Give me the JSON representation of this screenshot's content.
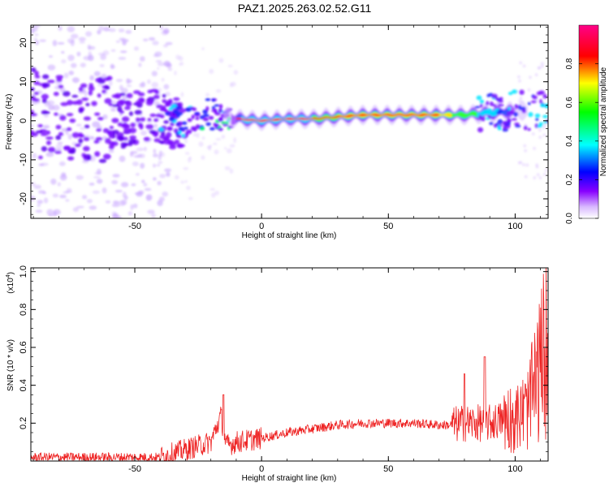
{
  "title": "PAZ1.2025.263.02.52.G11",
  "chart_data": [
    {
      "type": "heatmap",
      "xlabel": "Height of straight line (km)",
      "ylabel": "Frequency (Hz)",
      "xlim": [
        -91,
        113
      ],
      "ylim": [
        -25,
        24.5
      ],
      "xticks": [
        "-50",
        "0",
        "50",
        "100"
      ],
      "yticks": [
        "20",
        "10",
        "0",
        "-10",
        "-20"
      ],
      "colorbar": {
        "label": "Normalized spectral amplitude",
        "range": [
          0,
          1
        ],
        "ticks": [
          "0.0",
          "0.2",
          "0.4",
          "0.6",
          "0.8"
        ],
        "colors": [
          "#ffffff",
          "#8800ff",
          "#0000ff",
          "#00ffff",
          "#00ff00",
          "#ffff00",
          "#ff0000",
          "#ff0088"
        ]
      },
      "ridge": {
        "description_points_km": [
          -90,
          -60,
          -40,
          -30,
          -20,
          -10,
          0,
          10,
          20,
          40,
          60,
          80,
          100,
          110
        ],
        "frequency_hz": [
          1.5,
          0,
          1,
          -1,
          2,
          0.5,
          0,
          0.5,
          0.5,
          1.5,
          1.5,
          1.5,
          2.5,
          3
        ]
      }
    },
    {
      "type": "line",
      "xlabel": "Height of straight line (km)",
      "ylabel": "SNR (10 * v/v)",
      "y_multiplier": "(x10",
      "y_multiplier_exp": "4",
      "y_multiplier_close": ")",
      "xlim": [
        -91,
        113
      ],
      "ylim": [
        0,
        1.02
      ],
      "xticks": [
        "-50",
        "0",
        "50",
        "100"
      ],
      "yticks": [
        "0.2",
        "0.4",
        "0.6",
        "0.8",
        "1.0"
      ],
      "color": "#ee2222",
      "series_x": [
        -91,
        -60,
        -40,
        -30,
        -20,
        -16,
        -14,
        -10,
        0,
        10,
        20,
        30,
        40,
        50,
        60,
        70,
        75,
        80,
        85,
        90,
        95,
        100,
        105,
        110,
        113
      ],
      "series_y": [
        0.02,
        0.02,
        0.02,
        0.06,
        0.1,
        0.24,
        0.08,
        0.1,
        0.12,
        0.15,
        0.17,
        0.19,
        0.2,
        0.2,
        0.2,
        0.19,
        0.19,
        0.2,
        0.2,
        0.2,
        0.22,
        0.2,
        0.25,
        0.45,
        0.6
      ],
      "peaks": [
        [
          -15,
          0.35
        ],
        [
          80,
          0.46
        ],
        [
          88,
          0.55
        ],
        [
          105,
          0.7
        ],
        [
          108,
          1.0
        ],
        [
          110,
          0.95
        ],
        [
          112,
          0.9
        ]
      ]
    }
  ]
}
